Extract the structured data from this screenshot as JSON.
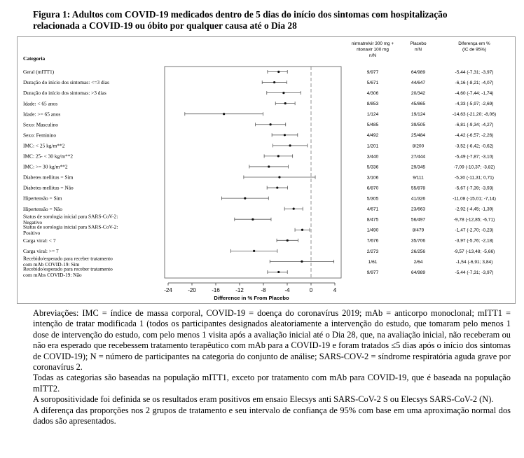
{
  "figure": {
    "title_line1": "Figura 1: Adultos com COVID-19 medicados dentro de 5 dias do início dos sintomas com hospitalização",
    "title_line2": "relacionada a COVID-19 ou óbito por qualquer causa até o Dia 28"
  },
  "chart_data": {
    "type": "forest",
    "category_header": "Categoria",
    "column_headers": {
      "treatment": [
        "nirmatrelvir 300 mg +",
        "ritonavir 100 mg",
        "n/N"
      ],
      "placebo": [
        "Placebo",
        "n/N"
      ],
      "difference": [
        "Diferença em %",
        "(IC de 95%)"
      ]
    },
    "xlabel": "Difference in % From Placebo",
    "xlim": [
      -24,
      4
    ],
    "xticks": [
      -24,
      -20,
      -16,
      -12,
      -8,
      -4,
      0,
      4
    ],
    "reference_line": 0,
    "rows": [
      {
        "label": [
          "Geral (mITT1)"
        ],
        "estimate": -5.44,
        "ci": [
          -7.31,
          -3.97
        ],
        "treatment": "9/977",
        "placebo": "64/989",
        "diff": "-5,44 (-7,31; -3,97)"
      },
      {
        "label": [
          "Duração do início dos sintomas: <=3 dias"
        ],
        "estimate": -6.16,
        "ci": [
          -8.21,
          -4.07
        ],
        "treatment": "5/671",
        "placebo": "44/647",
        "diff": "-6,16 (-8,21; -4,07)"
      },
      {
        "label": [
          "Duração do início dos sintomas: >3 dias"
        ],
        "estimate": -4.6,
        "ci": [
          -7.44,
          -1.74
        ],
        "treatment": "4/306",
        "placebo": "20/342",
        "diff": "-4,60 (-7,44; -1,74)"
      },
      {
        "label": [
          "Idade: < 65 anos"
        ],
        "estimate": -4.33,
        "ci": [
          -5.97,
          -2.69
        ],
        "treatment": "8/853",
        "placebo": "45/865",
        "diff": "-4,33 (-5,97; -2,69)"
      },
      {
        "label": [
          "Idade: >= 65 anos"
        ],
        "estimate": -14.63,
        "ci": [
          -21.2,
          -8.06
        ],
        "treatment": "1/124",
        "placebo": "19/124",
        "diff": "-14,63 (-21,20; -8,06)"
      },
      {
        "label": [
          "Sexo: Masculino"
        ],
        "estimate": -6.81,
        "ci": [
          -9.34,
          -4.27
        ],
        "treatment": "5/485",
        "placebo": "39/505",
        "diff": "-6,81 (-9,34; -4,27)"
      },
      {
        "label": [
          "Sexo: Feminino"
        ],
        "estimate": -4.42,
        "ci": [
          -6.57,
          -2.26
        ],
        "treatment": "4/492",
        "placebo": "25/484",
        "diff": "-4,42 (-6,57; -2,26)"
      },
      {
        "label": [
          "IMC: < 25 kg/m**2"
        ],
        "estimate": -3.52,
        "ci": [
          -6.42,
          -0.62
        ],
        "treatment": "1/201",
        "placebo": "8/200",
        "diff": "-3,52 (-6,42; -0,62)"
      },
      {
        "label": [
          "IMC: 25- < 30 kg/m**2"
        ],
        "estimate": -5.49,
        "ci": [
          -7.87,
          -3.1
        ],
        "treatment": "3/440",
        "placebo": "27/444",
        "diff": "-5,49 (-7,87; -3,10)"
      },
      {
        "label": [
          "IMC: >= 30 kg/m**2"
        ],
        "estimate": -7.09,
        "ci": [
          -10.37,
          -3.82
        ],
        "treatment": "5/336",
        "placebo": "29/345",
        "diff": "-7,09 (-10,37; -3,82)"
      },
      {
        "label": [
          "Diabetes mellitus = Sim"
        ],
        "estimate": -5.3,
        "ci": [
          -11.31,
          0.71
        ],
        "treatment": "3/106",
        "placebo": "9/111",
        "diff": "-5,30 (-11,31; 0,71)"
      },
      {
        "label": [
          "Diabetes mellitus = Não"
        ],
        "estimate": -5.67,
        "ci": [
          -7.39,
          -3.93
        ],
        "treatment": "6/870",
        "placebo": "55/878",
        "diff": "-5,67 (-7,39; -3,93)"
      },
      {
        "label": [
          "Hipertensão = Sim"
        ],
        "estimate": -11.08,
        "ci": [
          -15.01,
          -7.14
        ],
        "treatment": "5/305",
        "placebo": "41/326",
        "diff": "-11,08 (-15,01; -7,14)"
      },
      {
        "label": [
          "Hipertensão = Não"
        ],
        "estimate": -2.92,
        "ci": [
          -4.45,
          -1.39
        ],
        "treatment": "4/671",
        "placebo": "23/663",
        "diff": "-2,92 (-4,45; -1,39)"
      },
      {
        "label": [
          "Status de sorologia inicial para SARS-CoV-2:",
          "Negativo"
        ],
        "estimate": -9.78,
        "ci": [
          -12.85,
          -6.71
        ],
        "treatment": "8/475",
        "placebo": "56/497",
        "diff": "-9,78 (-12,85; -6,71)"
      },
      {
        "label": [
          "Status de sorologia inicial para SARS-CoV-2:",
          "Positivo"
        ],
        "estimate": -1.47,
        "ci": [
          -2.7,
          -0.23
        ],
        "treatment": "1/490",
        "placebo": "8/479",
        "diff": "-1,47 (-2,70; -0,23)"
      },
      {
        "label": [
          "Carga viral: < 7"
        ],
        "estimate": -3.97,
        "ci": [
          -5.76,
          -2.18
        ],
        "treatment": "7/676",
        "placebo": "35/706",
        "diff": "-3,97 (-5,76; -2,18)"
      },
      {
        "label": [
          "Carga viral: >= 7"
        ],
        "estimate": -9.57,
        "ci": [
          -13.48,
          -5.66
        ],
        "treatment": "2/273",
        "placebo": "26/256",
        "diff": "-9,57 (-13,48; -5,66)"
      },
      {
        "label": [
          "Recebido/esperado para receber tratamento",
          "com mAb COVID-19: Sim"
        ],
        "estimate": -1.54,
        "ci": [
          -6.91,
          3.84
        ],
        "treatment": "1/61",
        "placebo": "2/64",
        "diff": "-1,54 (-6,91; 3,84)"
      },
      {
        "label": [
          "Recebido/esperado para receber tratamento",
          "com mAbs COVID-19: Não"
        ],
        "estimate": -5.44,
        "ci": [
          -7.31,
          -3.97
        ],
        "treatment": "9/977",
        "placebo": "64/989",
        "diff": "-5,44 (-7,31; -3,97)"
      }
    ]
  },
  "notes": {
    "p1": "Abreviações: IMC = índice de massa corporal, COVID-19 = doença do coronavírus 2019; mAb = anticorpo monoclonal; mITT1 = intenção de tratar modificada 1 (todos os participantes designados aleatoriamente a intervenção do estudo, que tomaram pelo menos 1 dose de intervenção do estudo, com pelo menos 1 visita após a avaliação inicial até o Dia 28, que, na avaliação inicial, não receberam ou não era esperado que recebessem tratamento terapêutico com mAb para a COVID-19 e foram tratados ≤5 dias após o início dos sintomas de COVID-19); N = número de participantes na categoria do conjunto de análise; SARS-COV-2 = síndrome respiratória aguda grave por coronavírus 2.",
    "p2": "Todas as categorias são baseadas na população mITT1, exceto por tratamento com mAb para COVID-19, que é baseada na população mITT2.",
    "p3": "A soropositividade foi definida se os resultados eram positivos em ensaio Elecsys anti SARS-CoV-2 S ou Elecsys SARS-CoV-2 (N).",
    "p4": "A diferença das proporções nos 2 grupos de tratamento e seu intervalo de confiança de 95% com base em uma aproximação normal dos dados são apresentados."
  }
}
